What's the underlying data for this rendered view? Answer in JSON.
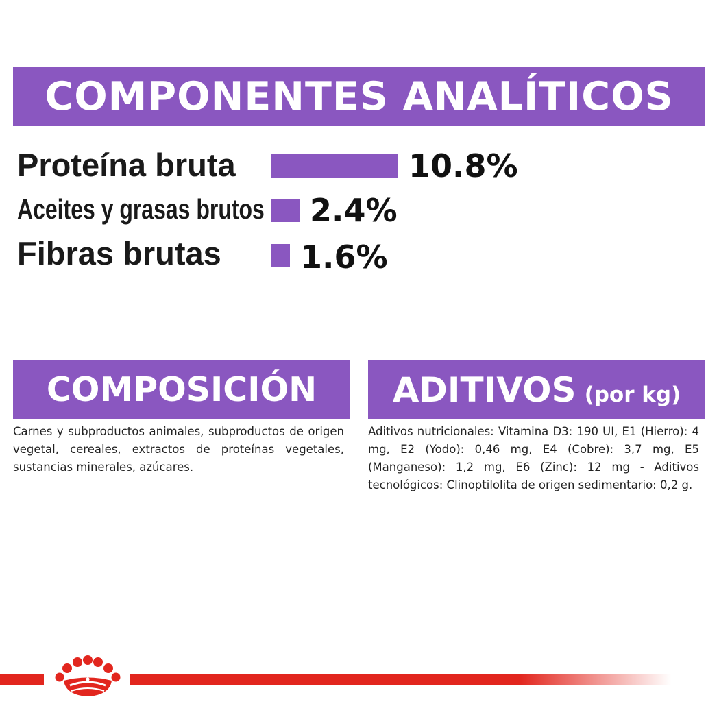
{
  "analytic": {
    "title": "COMPONENTES ANALÍTICOS",
    "items": [
      {
        "label": "Proteína bruta",
        "value_text": "10.8%",
        "value": 10.8
      },
      {
        "label": "Aceites y grasas brutos",
        "value_text": "2.4%",
        "value": 2.4
      },
      {
        "label": "Fibras brutas",
        "value_text": "1.6%",
        "value": 1.6
      }
    ]
  },
  "composition": {
    "title": "COMPOSICIÓN",
    "text": "Carnes y subproductos animales, subproductos de origen vegetal, cereales, extractos de proteínas vegetales, sustancias minerales, azúcares."
  },
  "additives": {
    "title": "ADITIVOS",
    "unit": "(por kg)",
    "text": "Aditivos nutricionales: Vitamina D3: 190 UI, E1 (Hierro): 4 mg, E2 (Yodo): 0,46 mg, E4 (Cobre): 3,7 mg, E5 (Manganeso): 1,2 mg, E6 (Zinc): 12 mg - Aditivos tecnológicos: Clinoptilolita de origen sedimentario: 0,2 g."
  },
  "brand": {
    "logo_icon": "crown-logo-icon",
    "accent_color": "#e2261e",
    "banner_color": "#8a57c0"
  }
}
